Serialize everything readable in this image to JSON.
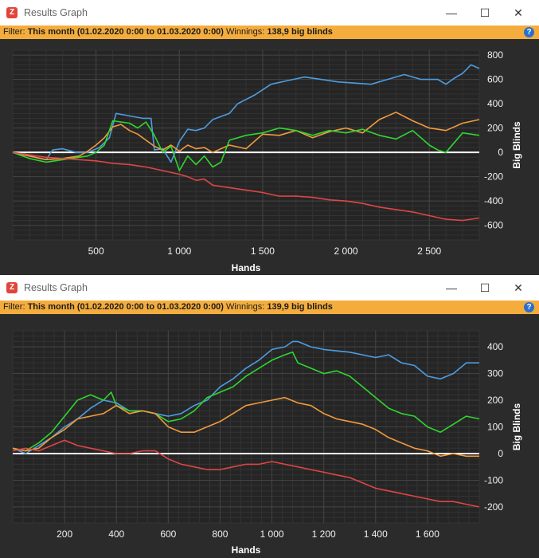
{
  "windows": [
    {
      "title": "Results Graph",
      "app_icon": "Z",
      "window_controls": {
        "minimize": "—",
        "maximize": "☐",
        "close": "✕"
      },
      "filter": {
        "label": "Filter:",
        "value": "This month (01.02.2020 0:00 to 01.03.2020 0:00)",
        "winnings_label": "Winnings:",
        "winnings_value": "138,9 big blinds"
      },
      "chart_data": {
        "type": "line",
        "xlabel": "Hands",
        "ylabel": "Big Blinds",
        "xlim": [
          0,
          2800
        ],
        "ylim": [
          -720,
          840
        ],
        "x_ticks": [
          500,
          1000,
          1500,
          2000,
          2500
        ],
        "x_tick_labels": [
          "500",
          "1 000",
          "1 500",
          "2 000",
          "2 500"
        ],
        "y_ticks": [
          -600,
          -400,
          -200,
          0,
          200,
          400,
          600,
          800
        ],
        "y_tick_labels": [
          "-600",
          "-400",
          "-200",
          "0",
          "200",
          "400",
          "600",
          "800"
        ],
        "series": [
          {
            "color": "#4d9de0",
            "x": [
              0,
              200,
              240,
              300,
              380,
              450,
              520,
              580,
              620,
              700,
              780,
              830,
              850,
              900,
              950,
              1000,
              1050,
              1100,
              1150,
              1200,
              1300,
              1350,
              1450,
              1550,
              1650,
              1750,
              1850,
              1950,
              2050,
              2150,
              2250,
              2350,
              2450,
              2550,
              2600,
              2650,
              2700,
              2750,
              2800
            ],
            "y": [
              0,
              -60,
              20,
              30,
              0,
              0,
              40,
              120,
              320,
              300,
              280,
              280,
              20,
              30,
              -80,
              90,
              190,
              180,
              200,
              270,
              320,
              400,
              470,
              560,
              590,
              620,
              600,
              580,
              570,
              560,
              600,
              640,
              600,
              600,
              560,
              610,
              650,
              720,
              690
            ]
          },
          {
            "color": "#f29a3d",
            "x": [
              0,
              100,
              200,
              300,
              400,
              450,
              500,
              550,
              600,
              650,
              700,
              750,
              800,
              850,
              900,
              950,
              1000,
              1050,
              1100,
              1150,
              1200,
              1300,
              1400,
              1500,
              1600,
              1700,
              1800,
              1900,
              2000,
              2100,
              2200,
              2300,
              2400,
              2500,
              2600,
              2700,
              2800
            ],
            "y": [
              0,
              -30,
              -60,
              -50,
              -30,
              10,
              60,
              120,
              210,
              230,
              180,
              150,
              100,
              50,
              20,
              60,
              10,
              60,
              30,
              40,
              0,
              60,
              30,
              150,
              140,
              180,
              120,
              170,
              200,
              160,
              270,
              330,
              260,
              200,
              180,
              240,
              270
            ]
          },
          {
            "color": "#2fd62f",
            "x": [
              0,
              100,
              200,
              300,
              400,
              450,
              500,
              550,
              600,
              650,
              700,
              750,
              800,
              850,
              900,
              950,
              1000,
              1050,
              1100,
              1150,
              1200,
              1250,
              1300,
              1400,
              1500,
              1600,
              1700,
              1800,
              1900,
              2000,
              2100,
              2200,
              2300,
              2400,
              2500,
              2550,
              2600,
              2700,
              2800
            ],
            "y": [
              0,
              -50,
              -80,
              -60,
              -40,
              -30,
              0,
              60,
              260,
              250,
              240,
              200,
              250,
              140,
              0,
              50,
              -150,
              -30,
              -100,
              -30,
              -120,
              -80,
              100,
              140,
              160,
              200,
              180,
              140,
              180,
              160,
              190,
              140,
              110,
              180,
              60,
              20,
              0,
              160,
              140
            ]
          },
          {
            "color": "#e04545",
            "x": [
              0,
              100,
              200,
              300,
              400,
              500,
              600,
              700,
              800,
              900,
              1000,
              1050,
              1100,
              1150,
              1200,
              1300,
              1400,
              1500,
              1600,
              1700,
              1800,
              1900,
              2000,
              2100,
              2200,
              2300,
              2400,
              2500,
              2600,
              2700,
              2800
            ],
            "y": [
              0,
              -20,
              -40,
              -50,
              -60,
              -70,
              -90,
              -100,
              -120,
              -150,
              -180,
              -200,
              -230,
              -220,
              -270,
              -290,
              -310,
              -330,
              -360,
              -360,
              -370,
              -390,
              -400,
              -420,
              -450,
              -470,
              -490,
              -520,
              -550,
              -560,
              -540
            ]
          }
        ]
      }
    },
    {
      "title": "Results Graph",
      "app_icon": "Z",
      "window_controls": {
        "minimize": "—",
        "maximize": "☐",
        "close": "✕"
      },
      "filter": {
        "label": "Filter:",
        "value": "This month (01.02.2020 0:00 to 01.03.2020 0:00)",
        "winnings_label": "Winnings:",
        "winnings_value": "139,9 big blinds"
      },
      "chart_data": {
        "type": "line",
        "xlabel": "Hands",
        "ylabel": "Big Blinds",
        "xlim": [
          0,
          1800
        ],
        "ylim": [
          -260,
          460
        ],
        "x_ticks": [
          200,
          400,
          600,
          800,
          1000,
          1200,
          1400,
          1600
        ],
        "x_tick_labels": [
          "200",
          "400",
          "600",
          "800",
          "1 000",
          "1 200",
          "1 400",
          "1 600"
        ],
        "y_ticks": [
          -200,
          -100,
          0,
          100,
          200,
          300,
          400
        ],
        "y_tick_labels": [
          "-200",
          "-100",
          "0",
          "100",
          "200",
          "300",
          "400"
        ],
        "series": [
          {
            "color": "#4d9de0",
            "x": [
              0,
              50,
              100,
              150,
              200,
              250,
              300,
              350,
              400,
              450,
              500,
              550,
              600,
              650,
              700,
              750,
              800,
              850,
              900,
              950,
              1000,
              1050,
              1080,
              1100,
              1150,
              1200,
              1300,
              1400,
              1450,
              1500,
              1550,
              1600,
              1650,
              1700,
              1750,
              1800
            ],
            "y": [
              20,
              0,
              30,
              60,
              100,
              130,
              170,
              200,
              190,
              160,
              160,
              150,
              140,
              150,
              180,
              200,
              250,
              280,
              320,
              350,
              390,
              400,
              420,
              420,
              400,
              390,
              380,
              360,
              370,
              340,
              330,
              290,
              280,
              300,
              340,
              340
            ]
          },
          {
            "color": "#2fd62f",
            "x": [
              0,
              50,
              100,
              150,
              200,
              250,
              300,
              350,
              380,
              400,
              450,
              500,
              550,
              600,
              650,
              700,
              750,
              800,
              850,
              900,
              950,
              1000,
              1050,
              1080,
              1100,
              1150,
              1200,
              1250,
              1300,
              1350,
              1400,
              1450,
              1500,
              1550,
              1600,
              1650,
              1700,
              1750,
              1800
            ],
            "y": [
              20,
              10,
              40,
              80,
              140,
              200,
              220,
              200,
              230,
              180,
              160,
              160,
              150,
              120,
              130,
              160,
              210,
              230,
              250,
              290,
              320,
              350,
              370,
              380,
              340,
              320,
              300,
              310,
              290,
              250,
              210,
              170,
              150,
              140,
              100,
              80,
              110,
              140,
              130
            ]
          },
          {
            "color": "#f29a3d",
            "x": [
              0,
              50,
              100,
              150,
              200,
              250,
              300,
              350,
              400,
              450,
              500,
              550,
              600,
              650,
              700,
              750,
              800,
              850,
              900,
              950,
              1000,
              1050,
              1100,
              1150,
              1200,
              1250,
              1300,
              1350,
              1400,
              1450,
              1500,
              1550,
              1600,
              1650,
              1700,
              1750,
              1800
            ],
            "y": [
              20,
              10,
              20,
              60,
              90,
              130,
              140,
              150,
              180,
              150,
              160,
              150,
              100,
              80,
              80,
              100,
              120,
              150,
              180,
              190,
              200,
              210,
              190,
              180,
              150,
              130,
              120,
              110,
              90,
              60,
              40,
              20,
              10,
              -10,
              0,
              -10,
              -10
            ]
          },
          {
            "color": "#e04545",
            "x": [
              0,
              50,
              100,
              150,
              200,
              250,
              300,
              350,
              400,
              450,
              500,
              550,
              600,
              650,
              700,
              750,
              800,
              850,
              900,
              950,
              1000,
              1050,
              1100,
              1150,
              1200,
              1250,
              1300,
              1350,
              1400,
              1450,
              1500,
              1550,
              1600,
              1650,
              1700,
              1750,
              1800
            ],
            "y": [
              10,
              20,
              10,
              30,
              50,
              30,
              20,
              10,
              0,
              0,
              10,
              10,
              -20,
              -40,
              -50,
              -60,
              -60,
              -50,
              -40,
              -40,
              -30,
              -40,
              -50,
              -60,
              -70,
              -80,
              -90,
              -110,
              -130,
              -140,
              -150,
              -160,
              -170,
              -180,
              -180,
              -190,
              -200
            ]
          }
        ]
      }
    }
  ]
}
